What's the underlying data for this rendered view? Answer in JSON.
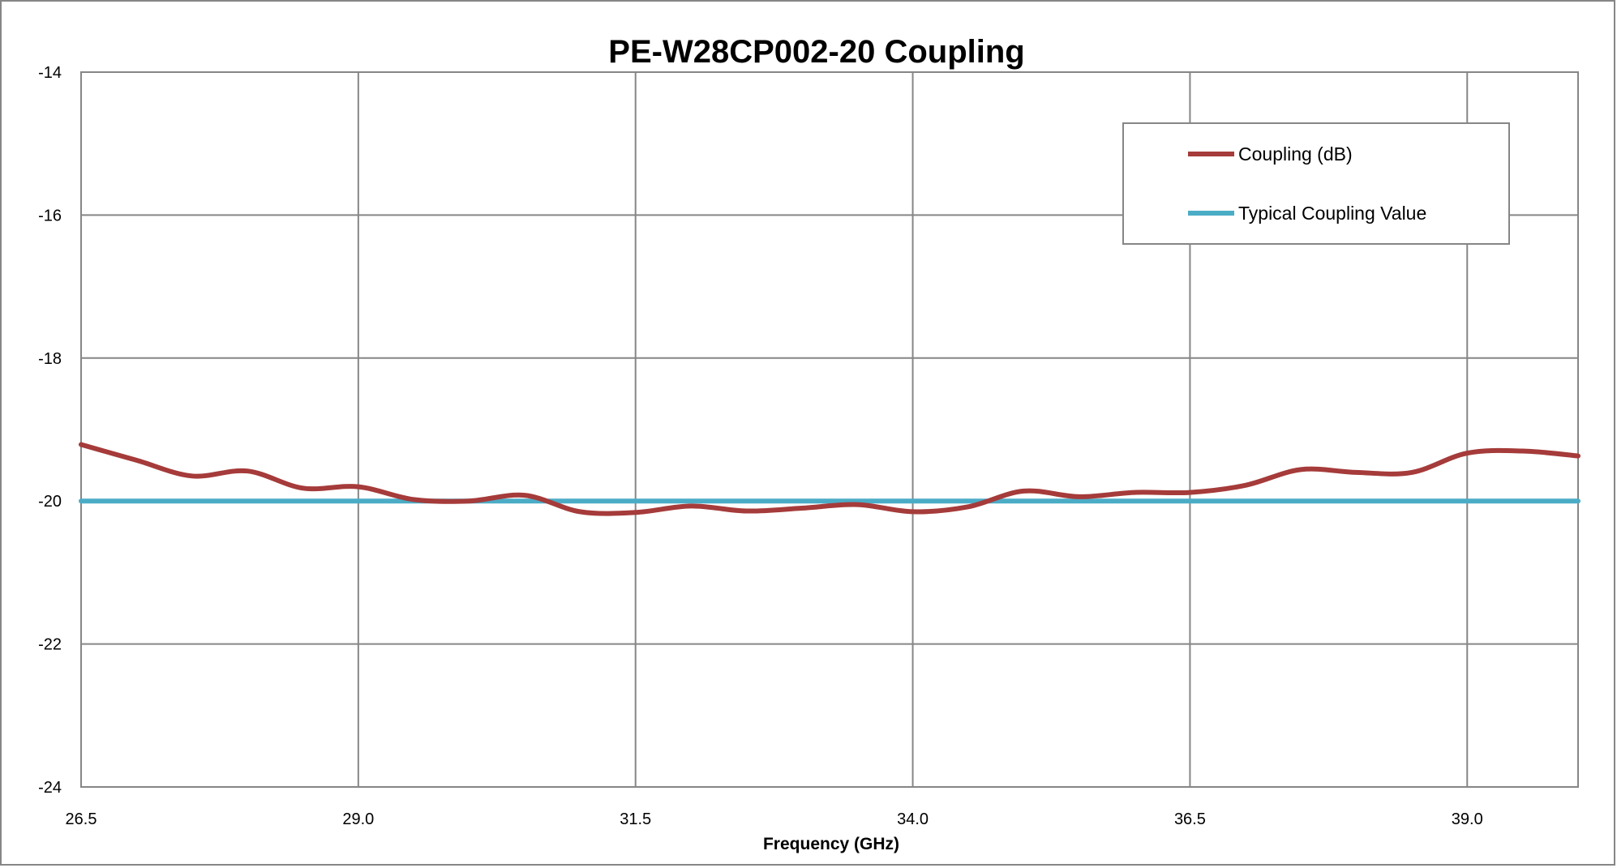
{
  "chart_data": {
    "type": "line",
    "title": "PE-W28CP002-20 Coupling",
    "xlabel": "Frequency (GHz)",
    "ylabel": "",
    "xlim": [
      26.5,
      40.0
    ],
    "ylim": [
      -24,
      -14
    ],
    "x_ticks": [
      26.5,
      29.0,
      31.5,
      34.0,
      36.5,
      39.0
    ],
    "x_tick_labels": [
      "26.5",
      "29.0",
      "31.5",
      "34.0",
      "36.5",
      "39.0"
    ],
    "y_ticks": [
      -14,
      -16,
      -18,
      -20,
      -22,
      -24
    ],
    "y_tick_labels": [
      "-14",
      "-16",
      "-18",
      "-20",
      "-22",
      "-24"
    ],
    "grid": true,
    "legend_position": "top-right",
    "series": [
      {
        "name": "Coupling (dB)",
        "color": "#a53b3a",
        "x": [
          26.5,
          27.0,
          27.5,
          28.0,
          28.5,
          29.0,
          29.5,
          30.0,
          30.5,
          31.0,
          31.5,
          32.0,
          32.5,
          33.0,
          33.5,
          34.0,
          34.5,
          35.0,
          35.5,
          36.0,
          36.5,
          37.0,
          37.5,
          38.0,
          38.5,
          39.0,
          39.5,
          40.0
        ],
        "y": [
          -19.21,
          -19.43,
          -19.65,
          -19.58,
          -19.82,
          -19.8,
          -19.98,
          -20.0,
          -19.92,
          -20.15,
          -20.16,
          -20.07,
          -20.14,
          -20.1,
          -20.05,
          -20.15,
          -20.08,
          -19.86,
          -19.94,
          -19.88,
          -19.88,
          -19.78,
          -19.56,
          -19.6,
          -19.6,
          -19.33,
          -19.3,
          -19.37
        ]
      },
      {
        "name": "Typical Coupling Value",
        "color": "#4bacc6",
        "x": [
          26.5,
          40.0
        ],
        "y": [
          -20,
          -20
        ]
      }
    ]
  }
}
